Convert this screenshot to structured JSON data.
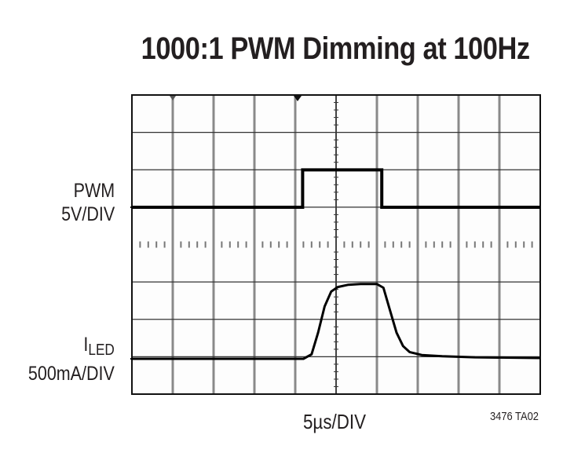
{
  "title": "1000:1 PWM Dimming at 100Hz",
  "channels": {
    "pwm": {
      "name": "PWM",
      "scale": "5V/DIV"
    },
    "iled": {
      "name_main": "I",
      "name_sub": "LED",
      "scale": "500mA/DIV"
    }
  },
  "xaxis": {
    "scale": "5µs/DIV"
  },
  "figure_id": "3476 TA02",
  "colors": {
    "trace": "#000000",
    "grid_major": "#333333",
    "grid_vertical": "#8a8a8a",
    "background": "#fdfdfd"
  },
  "chart_data": {
    "type": "line",
    "title": "1000:1 PWM Dimming at 100Hz",
    "xlabel": "5µs/DIV",
    "grid": {
      "columns": 10,
      "rows": 8,
      "on": true
    },
    "x_unit": "us",
    "x_range": [
      0,
      50
    ],
    "series": [
      {
        "name": "PWM",
        "scale": "5V/DIV",
        "unit": "V",
        "x": [
          0,
          20.9,
          20.9,
          30.6,
          30.6,
          50
        ],
        "values": [
          0,
          0,
          5,
          5,
          0,
          0
        ]
      },
      {
        "name": "ILED",
        "scale": "500mA/DIV",
        "unit": "mA",
        "x": [
          0,
          21.0,
          22.0,
          22.8,
          23.6,
          24.4,
          25.2,
          26.5,
          28.0,
          30.0,
          30.8,
          31.6,
          32.4,
          33.2,
          34.0,
          35.5,
          38.0,
          42.0,
          50.0
        ],
        "values": [
          0,
          0,
          60,
          350,
          700,
          900,
          960,
          990,
          1000,
          1000,
          950,
          650,
          350,
          170,
          90,
          50,
          35,
          20,
          10
        ]
      }
    ],
    "annotations": [
      "3476 TA02"
    ]
  }
}
